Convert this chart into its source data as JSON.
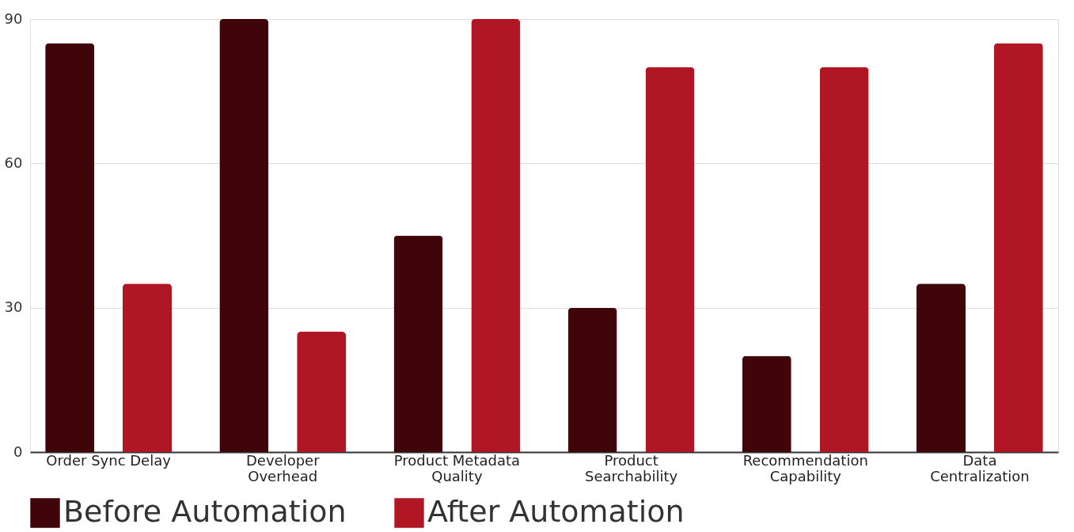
{
  "chart_data": {
    "type": "bar",
    "categories": [
      "Order Sync Delay",
      "Developer Overhead",
      "Product Metadata Quality",
      "Product Searchability",
      "Recommendation Capability",
      "Data Centralization"
    ],
    "series": [
      {
        "name": "Before Automation",
        "color": "#40050b",
        "values": [
          85,
          90,
          45,
          30,
          20,
          35
        ]
      },
      {
        "name": "After Automation",
        "color": "#b01624",
        "values": [
          35,
          25,
          90,
          80,
          80,
          85
        ]
      }
    ],
    "ylim": [
      0,
      90
    ],
    "yticks": [
      0,
      30,
      60,
      90
    ],
    "grid": "y",
    "legend": "bottom"
  }
}
